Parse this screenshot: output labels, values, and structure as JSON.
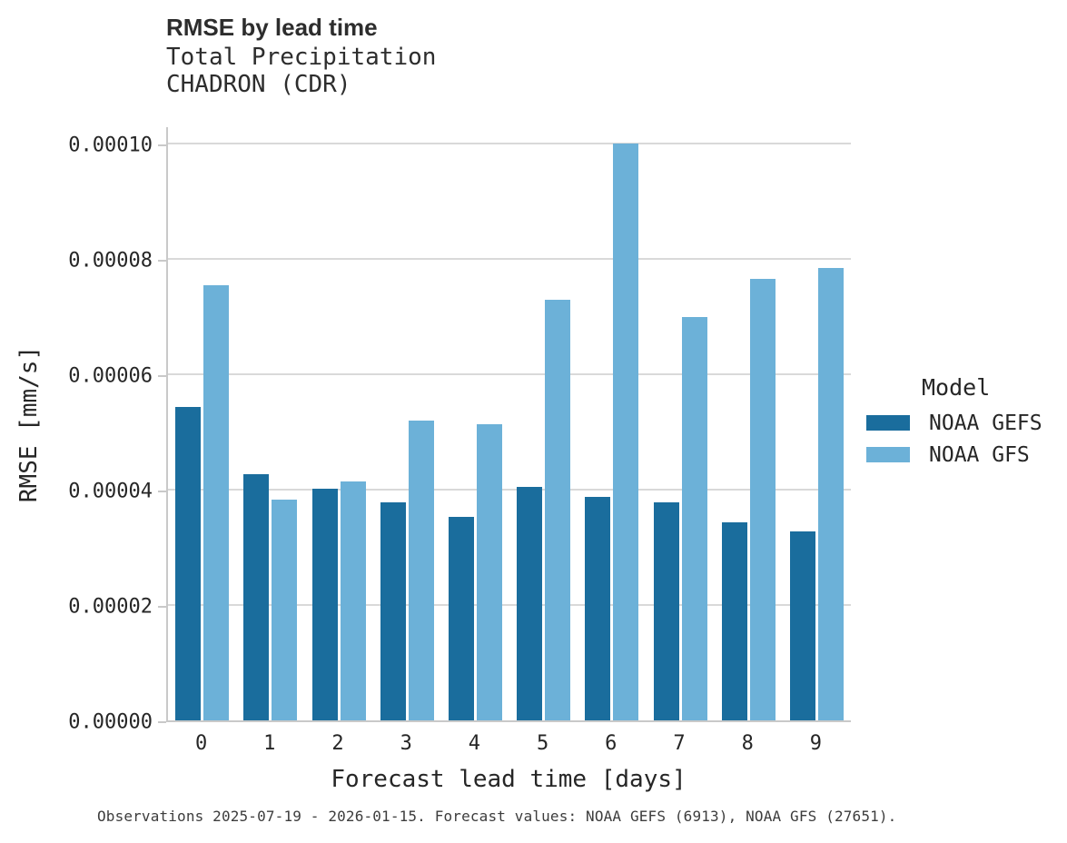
{
  "chart_data": {
    "type": "bar",
    "title": "RMSE by lead time",
    "subtitle": [
      "Total Precipitation",
      "CHADRON (CDR)"
    ],
    "xlabel": "Forecast lead time [days]",
    "ylabel": "RMSE [mm/s]",
    "caption": "Observations 2025-07-19 - 2026-01-15. Forecast values: NOAA GEFS (6913), NOAA GFS (27651).",
    "categories": [
      "0",
      "1",
      "2",
      "3",
      "4",
      "5",
      "6",
      "7",
      "8",
      "9"
    ],
    "series": [
      {
        "name": "NOAA GEFS",
        "color": "#1a6d9d",
        "values": [
          5.43e-05,
          4.27e-05,
          4.02e-05,
          3.78e-05,
          3.53e-05,
          4.05e-05,
          3.88e-05,
          3.78e-05,
          3.43e-05,
          3.28e-05
        ]
      },
      {
        "name": "NOAA GFS",
        "color": "#6cb1d8",
        "values": [
          7.55e-05,
          3.82e-05,
          4.14e-05,
          5.2e-05,
          5.14e-05,
          7.29e-05,
          0.0001,
          7e-05,
          7.66e-05,
          7.84e-05
        ]
      }
    ],
    "ylim": [
      0,
      0.000103
    ],
    "yticks": {
      "values": [
        0,
        2e-05,
        4e-05,
        6e-05,
        8e-05,
        0.0001
      ],
      "labels": [
        "0.00000",
        "0.00002",
        "0.00004",
        "0.00006",
        "0.00008",
        "0.00010"
      ]
    },
    "legend": {
      "title": "Model",
      "position": "right",
      "entries": [
        "NOAA GEFS",
        "NOAA GFS"
      ]
    },
    "grid": true,
    "colors": {
      "gridline": "#d9d9d9",
      "axis_line": "#c9c9c9",
      "text": "#262626"
    }
  }
}
